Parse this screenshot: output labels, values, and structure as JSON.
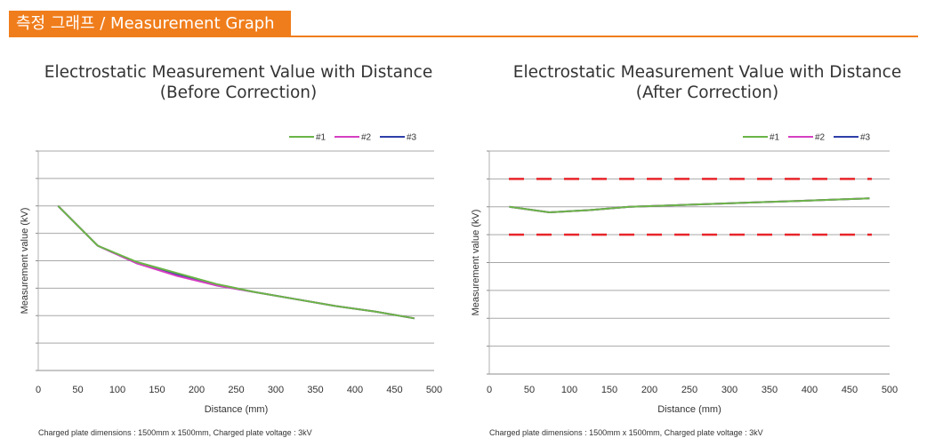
{
  "header": {
    "title_ko": "측정 그래프",
    "separator": " / ",
    "title_en": "Measurement Graph"
  },
  "colors": {
    "accent": "#f07d1b",
    "series1": "#6ab547",
    "series2": "#d63fc2",
    "series3": "#2e3fa8",
    "threshold": "#e8262b",
    "grid": "#a8a8a8"
  },
  "chart_data": [
    {
      "type": "line",
      "title": [
        "Electrostatic Measurement Value with Distance",
        "(Before Correction)"
      ],
      "xlabel": "Distance (mm)",
      "ylabel": "Measurement value (kV)",
      "xlim": [
        0,
        500
      ],
      "x_ticks": [
        "0",
        "50",
        "100",
        "150",
        "200",
        "250",
        "300",
        "350",
        "400",
        "450",
        "500"
      ],
      "y_gridlines": 8,
      "legend": "top-right",
      "series": [
        {
          "name": "#1",
          "x": [
            25,
            75,
            125,
            175,
            225,
            275,
            325,
            375,
            425,
            475
          ],
          "y": [
            6,
            4.55,
            3.95,
            3.55,
            3.15,
            2.85,
            2.6,
            2.35,
            2.15,
            1.9
          ]
        },
        {
          "name": "#2",
          "x": [
            25,
            75,
            125,
            175,
            225,
            275,
            325,
            375,
            425,
            475
          ],
          "y": [
            6,
            4.55,
            3.9,
            3.45,
            3.1,
            2.85,
            2.6,
            2.35,
            2.15,
            1.9
          ]
        },
        {
          "name": "#3",
          "x": [
            25,
            75,
            125,
            175,
            225,
            275,
            325,
            375,
            425,
            475
          ],
          "y": [
            6,
            4.55,
            3.9,
            3.5,
            3.1,
            2.85,
            2.6,
            2.35,
            2.15,
            1.9
          ]
        }
      ],
      "note": "Charged plate dimensions : 1500mm x 1500mm,  Charged plate voltage : 3kV"
    },
    {
      "type": "line",
      "title": [
        "Electrostatic Measurement Value with Distance",
        "(After Correction)"
      ],
      "xlabel": "Distance (mm)",
      "ylabel": "Measurement value (kV)",
      "xlim": [
        0,
        500
      ],
      "x_ticks": [
        "0",
        "50",
        "100",
        "150",
        "200",
        "250",
        "300",
        "350",
        "400",
        "450",
        "500"
      ],
      "y_gridlines": 8,
      "legend": "top-right",
      "series": [
        {
          "name": "#1",
          "x": [
            25,
            75,
            125,
            175,
            225,
            275,
            325,
            375,
            425,
            475
          ],
          "y": [
            6,
            5.8,
            5.88,
            6,
            6.05,
            6.1,
            6.15,
            6.2,
            6.25,
            6.3
          ]
        },
        {
          "name": "#2",
          "x": [
            25,
            75,
            125,
            175,
            225,
            275,
            325,
            375,
            425,
            475
          ],
          "y": [
            6,
            5.8,
            5.88,
            6,
            6.05,
            6.1,
            6.15,
            6.2,
            6.25,
            6.3
          ]
        },
        {
          "name": "#3",
          "x": [
            25,
            75,
            125,
            175,
            225,
            275,
            325,
            375,
            425,
            475
          ],
          "y": [
            6,
            5.8,
            5.88,
            6,
            6.05,
            6.1,
            6.15,
            6.2,
            6.25,
            6.3
          ]
        }
      ],
      "thresholds": [
        7,
        5
      ],
      "note": "Charged plate dimensions : 1500mm x 1500mm,  Charged plate voltage : 3kV"
    }
  ]
}
